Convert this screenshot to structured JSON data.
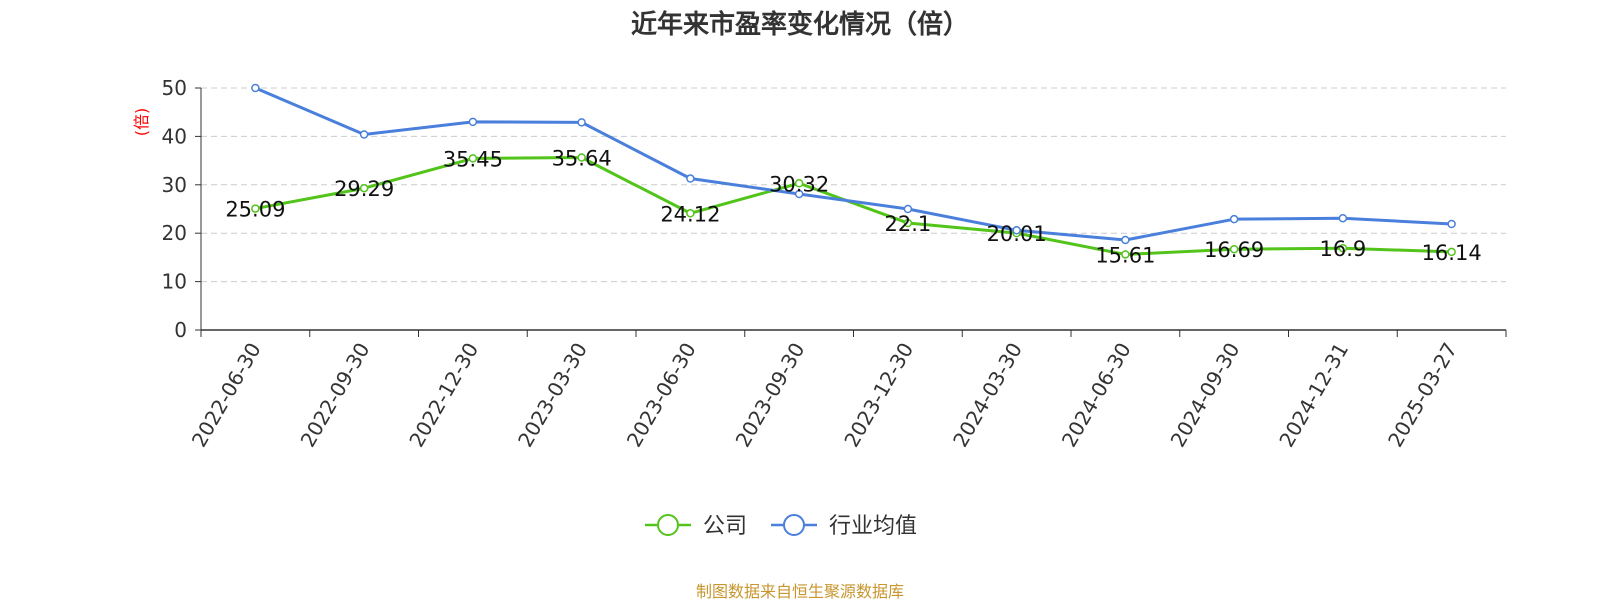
{
  "title": "近年来市盈率变化情况（倍）",
  "source": "制图数据来自恒生聚源数据库",
  "colors": {
    "company": "#52c41a",
    "industry": "#4a7fdc",
    "source_text": "#c8962e",
    "unit_label": "#ff0000",
    "axis": "#333333",
    "grid": "#cccccc"
  },
  "chart_data": {
    "type": "line",
    "title": "近年来市盈率变化情况（倍）",
    "ylabel": "(倍)",
    "xlabel": "",
    "ylim": [
      0,
      50
    ],
    "yticks": [
      0,
      10,
      20,
      30,
      40,
      50
    ],
    "grid": true,
    "legend_position": "bottom-center",
    "categories": [
      "2022-06-30",
      "2022-09-30",
      "2022-12-30",
      "2023-03-30",
      "2023-06-30",
      "2023-09-30",
      "2023-12-30",
      "2024-03-30",
      "2024-06-30",
      "2024-09-30",
      "2024-12-31",
      "2025-03-27"
    ],
    "series": [
      {
        "name": "公司",
        "color": "#52c41a",
        "values": [
          25.09,
          29.29,
          35.45,
          35.64,
          24.12,
          30.32,
          22.1,
          20.01,
          15.61,
          16.69,
          16.9,
          16.14
        ],
        "labels": [
          "25.09",
          "29.29",
          "35.45",
          "35.64",
          "24.12",
          "30.32",
          "22.1",
          "20.01",
          "15.61",
          "16.69",
          "16.9",
          "16.14"
        ]
      },
      {
        "name": "行业均值",
        "color": "#4a7fdc",
        "values": [
          50.0,
          40.4,
          43.0,
          42.9,
          31.3,
          28.1,
          25.0,
          20.6,
          18.6,
          22.9,
          23.1,
          21.9
        ]
      }
    ]
  }
}
